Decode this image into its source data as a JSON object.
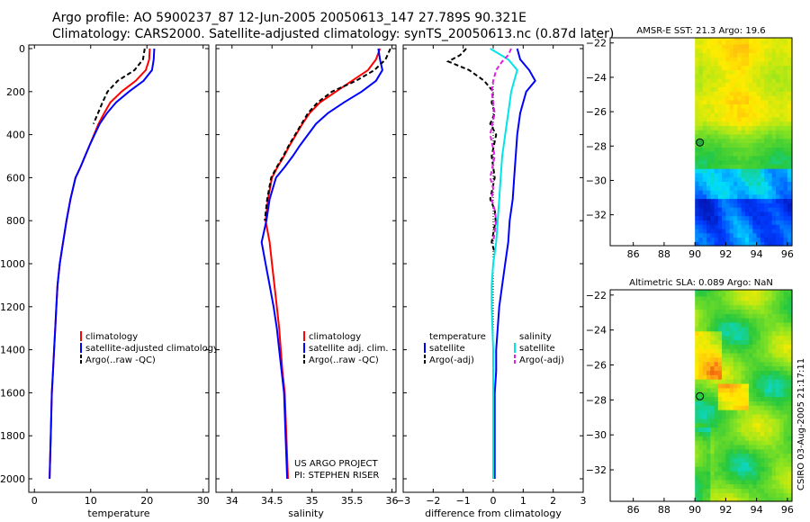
{
  "header": {
    "line1": "Argo profile: AO 5900237_87 12-Jun-2005 20050613_147 27.789S 90.321E",
    "line2": "Climatology: CARS2000. Satellite-adjusted climatology: synTS_20050613.nc (0.87d later)"
  },
  "colors": {
    "red": "#ff0000",
    "blue": "#0000ff",
    "black": "#000000",
    "cyan": "#00e5e5",
    "magenta": "#e020e0"
  },
  "chart_data": [
    {
      "type": "line",
      "xlabel": "temperature",
      "xlim": [
        -1,
        31
      ],
      "ylim": [
        0,
        2050
      ],
      "xticks": [
        0,
        10,
        20,
        30
      ],
      "yticks": [
        0,
        200,
        400,
        600,
        800,
        1000,
        1200,
        1400,
        1600,
        1800,
        2000
      ],
      "y_reversed": true,
      "legend": [
        "climatology",
        "satellite-adjusted climatology",
        "Argo(..raw -QC)"
      ],
      "series": [
        {
          "name": "climatology",
          "color": "#ff0000",
          "x": [
            20.5,
            20.4,
            19.8,
            18,
            15.5,
            13.5,
            12.4,
            11.4,
            10.6,
            9.8,
            9,
            8.2,
            7.3,
            6.4,
            5.7,
            5.1,
            4.5,
            4.1,
            3.9,
            3.7,
            3.5,
            3.3,
            3.1,
            2.9,
            2.7
          ],
          "y": [
            0,
            50,
            100,
            150,
            200,
            250,
            300,
            350,
            400,
            450,
            500,
            550,
            600,
            700,
            800,
            900,
            1000,
            1100,
            1200,
            1300,
            1400,
            1500,
            1600,
            1800,
            2000
          ]
        },
        {
          "name": "satellite-adjusted climatology",
          "color": "#0000ff",
          "x": [
            21.3,
            21.2,
            20.9,
            19.4,
            16.8,
            14.5,
            12.9,
            11.6,
            10.7,
            9.8,
            9,
            8.2,
            7.3,
            6.4,
            5.7,
            5.1,
            4.5,
            4.1,
            3.9,
            3.7,
            3.5,
            3.3,
            3.1,
            2.9,
            2.7
          ],
          "y": [
            0,
            50,
            100,
            150,
            200,
            250,
            300,
            350,
            400,
            450,
            500,
            550,
            600,
            700,
            800,
            900,
            1000,
            1100,
            1200,
            1300,
            1400,
            1500,
            1600,
            1800,
            2000
          ]
        },
        {
          "name": "Argo(..raw -QC)",
          "color": "#000000",
          "x": [
            19.6,
            19.3,
            17.8,
            14.8,
            13,
            12.1,
            11.3,
            10.5
          ],
          "y": [
            0,
            50,
            100,
            150,
            200,
            250,
            300,
            350
          ]
        }
      ]
    },
    {
      "type": "line",
      "xlabel": "salinity",
      "xlim": [
        33.8,
        36.05
      ],
      "ylim": [
        0,
        2050
      ],
      "xticks": [
        34,
        34.5,
        35,
        35.5,
        36
      ],
      "yticks": [
        0,
        200,
        400,
        600,
        800,
        1000,
        1200,
        1400,
        1600,
        1800,
        2000
      ],
      "y_reversed": true,
      "legend": [
        "climatology",
        "satellite adj. clim.",
        "Argo(..raw -QC)"
      ],
      "annotation": [
        "US ARGO PROJECT",
        "PI: STEPHEN RISER"
      ],
      "series": [
        {
          "name": "climatology",
          "color": "#ff0000",
          "x": [
            35.85,
            35.8,
            35.7,
            35.5,
            35.3,
            35.1,
            34.97,
            34.88,
            34.8,
            34.72,
            34.65,
            34.57,
            34.5,
            34.45,
            34.42,
            34.47,
            34.5,
            34.53,
            34.56,
            34.59,
            34.61,
            34.63,
            34.66,
            34.68,
            34.7
          ],
          "y": [
            0,
            50,
            100,
            150,
            200,
            250,
            300,
            350,
            400,
            450,
            500,
            550,
            600,
            700,
            800,
            900,
            1000,
            1100,
            1200,
            1300,
            1400,
            1500,
            1600,
            1800,
            2000
          ]
        },
        {
          "name": "satellite adj. clim.",
          "color": "#0000ff",
          "x": [
            35.83,
            35.85,
            35.88,
            35.8,
            35.62,
            35.4,
            35.2,
            35.05,
            34.95,
            34.85,
            34.76,
            34.66,
            34.55,
            34.47,
            34.43,
            34.37,
            34.42,
            34.47,
            34.52,
            34.56,
            34.59,
            34.62,
            34.65,
            34.67,
            34.69
          ],
          "y": [
            0,
            50,
            100,
            150,
            200,
            250,
            300,
            350,
            400,
            450,
            500,
            550,
            600,
            700,
            800,
            900,
            1000,
            1100,
            1200,
            1300,
            1400,
            1500,
            1600,
            1800,
            2000
          ]
        },
        {
          "name": "Argo(..raw -QC)",
          "color": "#000000",
          "x": [
            35.98,
            35.92,
            35.78,
            35.55,
            35.25,
            35.07,
            34.95,
            34.87,
            34.79,
            34.71,
            34.64,
            34.56,
            34.49,
            34.44,
            34.41
          ],
          "y": [
            0,
            50,
            100,
            150,
            200,
            250,
            300,
            350,
            400,
            450,
            500,
            550,
            600,
            700,
            800
          ]
        }
      ]
    },
    {
      "type": "line",
      "xlabel": "difference from climatology",
      "xlim": [
        -3,
        3
      ],
      "ylim": [
        0,
        2050
      ],
      "xticks": [
        -3,
        -2,
        -1,
        0,
        1,
        2,
        3
      ],
      "yticks": [
        0,
        200,
        400,
        600,
        800,
        1000,
        1200,
        1400,
        1600,
        1800,
        2000
      ],
      "y_reversed": true,
      "legend_left": [
        "temperature",
        "satellite",
        "Argo(-adj)"
      ],
      "legend_right": [
        "salinity",
        "satellite",
        "Argo(-adj)"
      ],
      "series": [
        {
          "name": "temperature satellite",
          "color": "#0000ff",
          "x": [
            0.8,
            0.9,
            1.2,
            1.4,
            1.1,
            1.0,
            0.9,
            0.8,
            0.75,
            0.7,
            0.65,
            0.6,
            0.55,
            0.5,
            0.4,
            0.3,
            0.2,
            0.15,
            0.1,
            0.1,
            0.05,
            0.05,
            0.05,
            0.05,
            0.05
          ],
          "y": [
            0,
            50,
            100,
            150,
            200,
            250,
            300,
            400,
            500,
            600,
            700,
            750,
            800,
            900,
            1000,
            1100,
            1200,
            1300,
            1400,
            1500,
            1600,
            1700,
            1800,
            1900,
            2000
          ]
        },
        {
          "name": "temperature Argo(-adj)",
          "color": "#000000",
          "x": [
            -0.9,
            -1.1,
            -1.5,
            -0.8,
            -0.3,
            0,
            -0.05,
            0.05,
            -0.1,
            0.1,
            -0.05,
            0.05,
            -0.1,
            0.05,
            0.08,
            -0.05,
            0.05
          ],
          "y": [
            0,
            30,
            60,
            100,
            150,
            200,
            250,
            300,
            350,
            400,
            500,
            600,
            700,
            750,
            800,
            900,
            950
          ]
        },
        {
          "name": "salinity satellite",
          "color": "#00e5e5",
          "x": [
            -0.1,
            0.5,
            0.8,
            0.7,
            0.6,
            0.5,
            0.4,
            0.3,
            0.25,
            0.2,
            0.15,
            0.1,
            0.05,
            0,
            -0.05,
            -0.05,
            0,
            0,
            0,
            0,
            0
          ],
          "y": [
            0,
            50,
            100,
            150,
            200,
            300,
            400,
            500,
            600,
            700,
            800,
            900,
            950,
            1000,
            1100,
            1200,
            1400,
            1600,
            1800,
            1900,
            2000
          ]
        },
        {
          "name": "salinity Argo(-adj)",
          "color": "#e020e0",
          "x": [
            0.6,
            0.5,
            0.3,
            0.1,
            0,
            -0.05,
            0.05,
            -0.1,
            0.05,
            -0.1,
            0,
            -0.05,
            0.05,
            0.1,
            0.05,
            0
          ],
          "y": [
            0,
            30,
            60,
            100,
            150,
            200,
            300,
            400,
            500,
            600,
            650,
            700,
            750,
            800,
            850,
            900
          ]
        }
      ]
    },
    {
      "type": "heatmap",
      "title": "AMSR-E SST: 21.3 Argo: 19.6",
      "xlim": [
        84.5,
        96.3
      ],
      "ylim": [
        -33.8,
        -21.7
      ],
      "xticks": [
        86,
        88,
        90,
        92,
        94,
        96
      ],
      "yticks": [
        -22,
        -24,
        -26,
        -28,
        -30,
        -32
      ],
      "data_xrange": [
        90,
        96.3
      ],
      "point": {
        "lon": 90.321,
        "lat": -27.789
      }
    },
    {
      "type": "heatmap",
      "title": "Altimetric SLA: 0.089 Argo: NaN",
      "xlim": [
        84.5,
        96.3
      ],
      "ylim": [
        -33.8,
        -21.7
      ],
      "xticks": [
        86,
        88,
        90,
        92,
        94,
        96
      ],
      "yticks": [
        -22,
        -24,
        -26,
        -28,
        -30,
        -32
      ],
      "data_xrange": [
        90,
        96.3
      ],
      "point": {
        "lon": 90.321,
        "lat": -27.789
      }
    }
  ],
  "side_label": "CSIRO 03-Aug-2005 21:17:11"
}
